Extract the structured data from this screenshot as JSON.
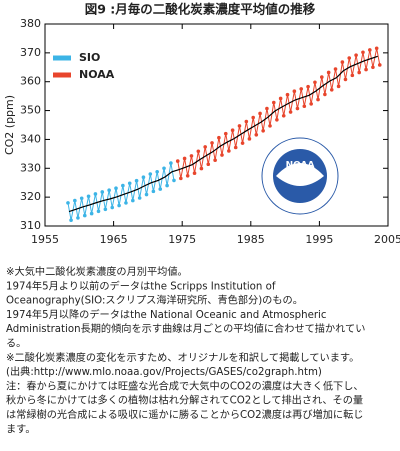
{
  "chart_data": {
    "type": "line",
    "title": "図9 :月毎の二酸化炭素濃度平均値の推移",
    "y_label": "CO2 (ppm)",
    "xlim": [
      1955,
      2005
    ],
    "xticks": [
      1955,
      1965,
      1975,
      1985,
      1995,
      2005
    ],
    "ylim": [
      310,
      380
    ],
    "yticks": [
      310,
      320,
      330,
      340,
      350,
      360,
      370,
      380
    ],
    "grid": false,
    "legend": "upper left",
    "series": [
      {
        "name": "SIO",
        "color": "#3cb4e6",
        "x": [
          1958.35,
          1958.8,
          1959.35,
          1959.8,
          1960.35,
          1960.8,
          1961.35,
          1961.8,
          1962.35,
          1962.8,
          1963.35,
          1963.8,
          1964.35,
          1964.8,
          1965.35,
          1965.8,
          1966.35,
          1966.8,
          1967.35,
          1967.8,
          1968.35,
          1968.8,
          1969.35,
          1969.8,
          1970.35,
          1970.8,
          1971.35,
          1971.8,
          1972.35,
          1972.8,
          1973.35,
          1973.8
        ],
        "values": [
          318.0,
          312.0,
          318.8,
          312.8,
          319.6,
          313.6,
          320.3,
          314.3,
          321.1,
          315.1,
          321.8,
          315.8,
          322.4,
          316.4,
          323.1,
          317.1,
          324.0,
          318.0,
          324.8,
          318.8,
          325.7,
          319.7,
          326.9,
          320.9,
          328.0,
          322.0,
          328.8,
          322.8,
          330.0,
          324.0,
          331.8,
          325.8
        ]
      },
      {
        "name": "NOAA",
        "color": "#e8452c",
        "x": [
          1974.35,
          1974.8,
          1975.35,
          1975.8,
          1976.35,
          1976.8,
          1977.35,
          1977.8,
          1978.35,
          1978.8,
          1979.35,
          1979.8,
          1980.35,
          1980.8,
          1981.35,
          1981.8,
          1982.35,
          1982.8,
          1983.35,
          1983.8,
          1984.35,
          1984.8,
          1985.35,
          1985.8,
          1986.35,
          1986.8,
          1987.35,
          1987.8,
          1988.35,
          1988.8,
          1989.35,
          1989.8,
          1990.35,
          1990.8,
          1991.35,
          1991.8,
          1992.35,
          1992.8,
          1993.35,
          1993.8,
          1994.35,
          1994.8,
          1995.35,
          1995.8,
          1996.35,
          1996.8,
          1997.35,
          1997.8,
          1998.35,
          1998.8,
          1999.35,
          1999.8,
          2000.35,
          2000.8,
          2001.35,
          2001.8,
          2002.35,
          2002.8,
          2003.35,
          2003.8
        ],
        "values": [
          332.5,
          326.5,
          333.4,
          327.4,
          334.3,
          328.3,
          335.9,
          329.9,
          337.4,
          331.4,
          338.8,
          332.8,
          340.6,
          334.6,
          342.0,
          336.0,
          343.2,
          337.2,
          344.7,
          338.7,
          346.2,
          340.2,
          347.6,
          341.6,
          349.0,
          343.0,
          350.7,
          344.7,
          352.8,
          346.8,
          354.2,
          348.2,
          355.5,
          349.5,
          356.7,
          350.7,
          357.5,
          351.5,
          358.3,
          352.3,
          359.8,
          353.8,
          361.6,
          355.6,
          363.2,
          357.2,
          364.4,
          358.4,
          366.8,
          360.8,
          368.2,
          362.2,
          369.2,
          363.2,
          370.2,
          364.2,
          371.0,
          365.0,
          371.6,
          365.8
        ]
      }
    ],
    "trend": {
      "color": "#000000",
      "x": [
        1958.5,
        1959.5,
        1960.5,
        1961.5,
        1962.5,
        1963.5,
        1964.5,
        1965.5,
        1966.5,
        1967.5,
        1968.5,
        1969.5,
        1970.5,
        1971.5,
        1972.5,
        1973.5,
        1974.5,
        1975.5,
        1976.5,
        1977.5,
        1978.5,
        1979.5,
        1980.5,
        1981.5,
        1982.5,
        1983.5,
        1984.5,
        1985.5,
        1986.5,
        1987.5,
        1988.5,
        1989.5,
        1990.5,
        1991.5,
        1992.5,
        1993.5,
        1994.5,
        1995.5,
        1996.5,
        1997.5,
        1998.5,
        1999.5,
        2000.5,
        2001.5,
        2002.5,
        2003.5
      ],
      "values": [
        315.0,
        315.8,
        316.6,
        317.3,
        318.1,
        318.8,
        319.4,
        320.1,
        321.0,
        321.8,
        322.7,
        323.9,
        325.0,
        325.8,
        327.0,
        328.8,
        329.5,
        330.4,
        331.3,
        332.9,
        334.4,
        335.8,
        337.6,
        339.0,
        340.2,
        341.7,
        343.2,
        344.6,
        346.0,
        347.7,
        349.8,
        351.2,
        352.5,
        353.7,
        354.5,
        355.3,
        356.8,
        358.6,
        360.2,
        361.4,
        363.8,
        365.2,
        366.2,
        367.2,
        368.0,
        368.8
      ]
    }
  },
  "logo": {
    "label": "NOAA"
  },
  "notes": [
    "※大気中二酸化炭素濃度の月別平均値。",
    "1974年5月より以前のデータはthe Scripps Institution of",
    "Oceanography(SIO:スクリプス海洋研究所、青色部分)のもの。",
    "1974年5月以降のデータはthe National Oceanic and Atmospheric",
    "Administration長期的傾向を示す曲線は月ごとの平均値に合わせて描かれてい",
    "る。",
    "※二酸化炭素濃度の変化を示すため、オリジナルを和訳して掲載しています。",
    "(出典:http://www.mlo.noaa.gov/Projects/GASES/co2graph.htm)",
    "注：春から夏にかけては旺盛な光合成で大気中のCO2の濃度は大きく低下し、",
    "秋から冬にかけては多くの植物は枯れ分解されてCO2として排出され、その量",
    "は常緑樹の光合成による吸収に遥かに勝ることからCO2濃度は再び増加に転じ",
    "ます。"
  ]
}
